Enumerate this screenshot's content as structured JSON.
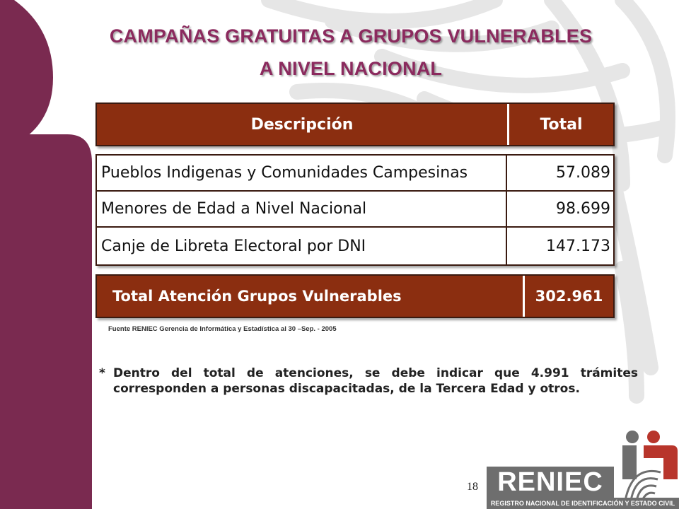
{
  "title": {
    "line1": "CAMPAÑAS GRATUITAS A GRUPOS VULNERABLES",
    "line2": "A NIVEL NACIONAL"
  },
  "table": {
    "headers": [
      "Descripción",
      "Total"
    ],
    "rows": [
      {
        "description": "Pueblos Indigenas y Comunidades Campesinas",
        "total": "57.089"
      },
      {
        "description": "Menores de Edad a Nivel Nacional",
        "total": "98.699"
      },
      {
        "description": "Canje de Libreta Electoral por DNI",
        "total": "147.173"
      }
    ],
    "total_row": {
      "label": "Total Atención Grupos Vulnerables",
      "value": "302.961"
    }
  },
  "source": "Fuente RENIEC  Gerencia  de Informática y  Estadística al 30 –Sep. - 2005",
  "note": {
    "marker": "*",
    "text": "Dentro del total de atenciones, se debe indicar que 4.991 trámites corresponden a personas discapacitadas, de la Tercera Edad y otros."
  },
  "page_number": "18",
  "logo": {
    "name": "RENIEC",
    "subtitle": "REGISTRO NACIONAL DE IDENTIFICACIÓN Y ESTADO CIVIL"
  },
  "colors": {
    "title": "#8b2a5e",
    "header_bg": "#8b2e10",
    "figure": "#7a2a50",
    "logo_red": "#b8352b",
    "logo_gray": "#6e6e6e"
  }
}
